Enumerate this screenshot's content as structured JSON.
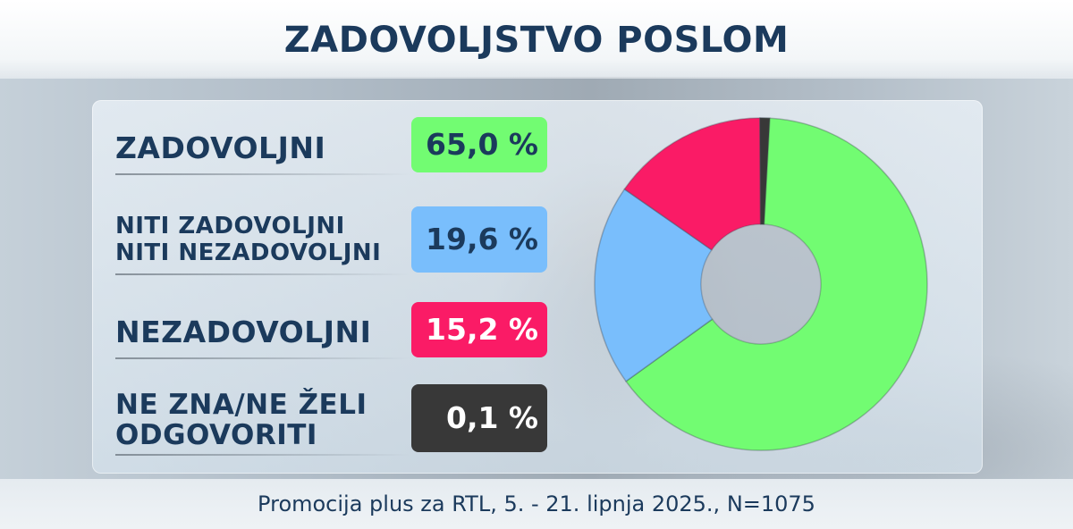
{
  "title": "ZADOVOLJSTVO POSLOM",
  "footer": "Promocija plus za RTL, 5. - 21. lipnja 2025., N=1075",
  "rows": [
    {
      "lines": [
        "ZADOVOLJNI"
      ],
      "value_label": "65,0 %",
      "color": "#72fc72",
      "text_color": "#1b3a5c"
    },
    {
      "lines": [
        "NITI ZADOVOLJNI",
        "NITI NEZADOVOLJNI"
      ],
      "value_label": "19,6 %",
      "color": "#79befc",
      "text_color": "#1b3a5c"
    },
    {
      "lines": [
        "NEZADOVOLJNI"
      ],
      "value_label": "15,2 %",
      "color": "#fa1b66",
      "text_color": "#ffffff"
    },
    {
      "lines": [
        "NE ZNA/NE ŽELI",
        "ODGOVORITI"
      ],
      "value_label": "0,1 %",
      "color": "#383838",
      "text_color": "#ffffff"
    }
  ],
  "chart_data": {
    "type": "pie",
    "title": "ZADOVOLJSTVO POSLOM",
    "labels": [
      "ZADOVOLJNI",
      "NITI ZADOVOLJNI NITI NEZADOVOLJNI",
      "NEZADOVOLJNI",
      "NE ZNA/NE ŽELI ODGOVORITI"
    ],
    "values": [
      65.0,
      19.6,
      15.2,
      0.1
    ],
    "colors": [
      "#72fc72",
      "#79befc",
      "#fa1b66",
      "#383838"
    ],
    "donut": true,
    "start": "top",
    "direction": "clockwise"
  }
}
